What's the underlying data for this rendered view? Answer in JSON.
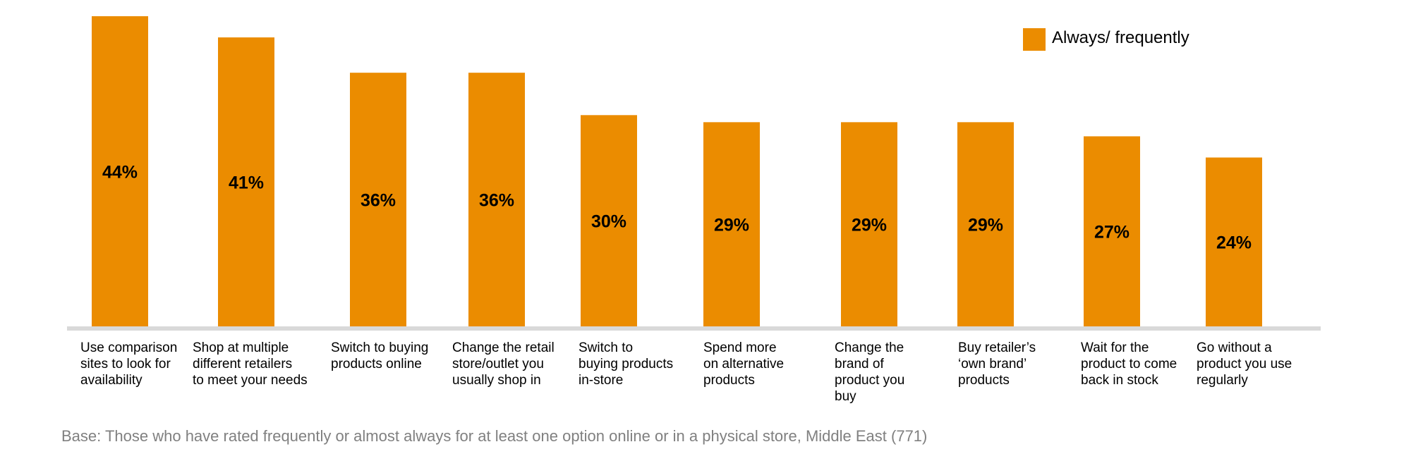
{
  "chart_data": {
    "type": "bar",
    "categories": [
      "Use comparison\nsites to look for\navailability",
      "Shop at multiple\ndifferent retailers\nto meet your needs",
      "Switch to buying\nproducts online",
      "Change the retail\nstore/outlet you\nusually shop in",
      "Switch to\nbuying products\nin-store",
      "Spend more\non alternative\nproducts",
      "Change the\nbrand of\nproduct you\nbuy",
      "Buy retailer’s\n‘own brand’\nproducts",
      "Wait for the\nproduct to come\nback in stock",
      "Go without a\nproduct you use\nregularly"
    ],
    "series": [
      {
        "name": "Always/ frequently",
        "color": "#eb8c00",
        "values": [
          44,
          41,
          36,
          36,
          30,
          29,
          29,
          29,
          27,
          24
        ],
        "value_labels": [
          "44%",
          "41%",
          "36%",
          "36%",
          "30%",
          "29%",
          "29%",
          "29%",
          "27%",
          "24%"
        ]
      }
    ],
    "legend": "top-right",
    "note": "Base: Those who have rated frequently or almost always for at least one option online or in a physical store, Middle East (771)"
  }
}
